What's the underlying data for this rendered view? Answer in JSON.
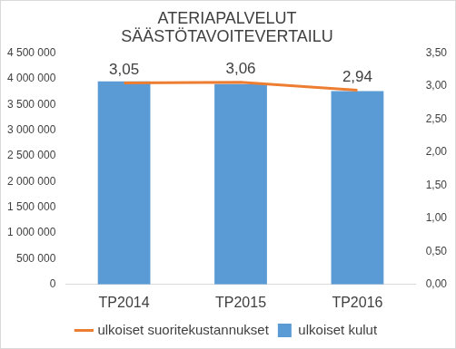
{
  "chart_data": {
    "type": "bar",
    "title": [
      "ATERIAPALVELUT",
      "SÄÄSTÖTAVOITEVERTAILU"
    ],
    "categories": [
      "TP2014",
      "TP2015",
      "TP2016"
    ],
    "series": [
      {
        "name": "ulkoiset kulut",
        "type": "bar",
        "color": "#5b9bd5",
        "axis": "y",
        "values": [
          3950000,
          3900000,
          3760000
        ]
      },
      {
        "name": "ulkoiset suoritekustannukset",
        "type": "line",
        "color": "#ed7d31",
        "axis": "y2",
        "marker": "none",
        "line_style": "solid",
        "data_labels": true,
        "values": [
          3.05,
          3.06,
          2.94
        ],
        "value_labels": [
          "3,05",
          "3,06",
          "2,94"
        ]
      }
    ],
    "ylim": [
      0,
      4500000
    ],
    "yticks": [
      0,
      {
        "value": 500000,
        "label": "500 000"
      },
      {
        "value": 1000000,
        "label": "1 000 000"
      },
      {
        "value": 1500000,
        "label": "1 500 000"
      },
      {
        "value": 2000000,
        "label": "2 000 000"
      },
      {
        "value": 2500000,
        "label": "2 500 000"
      },
      {
        "value": 3000000,
        "label": "3 000 000"
      },
      {
        "value": 3500000,
        "label": "3 500 000"
      },
      {
        "value": 4000000,
        "label": "4 000 000"
      },
      {
        "value": 4500000,
        "label": "4 500 000"
      }
    ],
    "y2lim": [
      0,
      3.5
    ],
    "y2ticks": [
      {
        "value": 0,
        "label": "0,00"
      },
      {
        "value": 0.5,
        "label": "0,50"
      },
      {
        "value": 1,
        "label": "1,00"
      },
      {
        "value": 1.5,
        "label": "1,50"
      },
      {
        "value": 2,
        "label": "2,00"
      },
      {
        "value": 2.5,
        "label": "2,50"
      },
      {
        "value": 3,
        "label": "3,00"
      },
      {
        "value": 3.5,
        "label": "3,50"
      }
    ],
    "grid": false,
    "legend": "bottom"
  }
}
